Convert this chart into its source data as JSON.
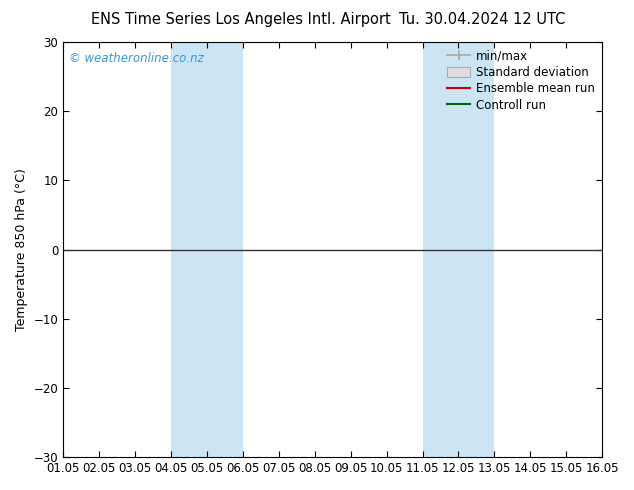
{
  "title_left": "ENS Time Series Los Angeles Intl. Airport",
  "title_right": "Tu. 30.04.2024 12 UTC",
  "ylabel": "Temperature 850 hPa (°C)",
  "ylim": [
    -30,
    30
  ],
  "yticks": [
    -30,
    -20,
    -10,
    0,
    10,
    20,
    30
  ],
  "xlim": [
    0,
    15
  ],
  "xtick_labels": [
    "01.05",
    "02.05",
    "03.05",
    "04.05",
    "05.05",
    "06.05",
    "07.05",
    "08.05",
    "09.05",
    "10.05",
    "11.05",
    "12.05",
    "13.05",
    "14.05",
    "15.05",
    "16.05"
  ],
  "xtick_positions": [
    0,
    1,
    2,
    3,
    4,
    5,
    6,
    7,
    8,
    9,
    10,
    11,
    12,
    13,
    14,
    15
  ],
  "shaded_bands": [
    {
      "xmin": 3,
      "xmax": 5
    },
    {
      "xmin": 10,
      "xmax": 12
    }
  ],
  "shade_color": "#cce5f5",
  "watermark": "© weatheronline.co.nz",
  "watermark_color": "#3399dd",
  "background_color": "#ffffff",
  "plot_bg_color": "#ffffff",
  "legend": {
    "min_max_label": "min/max",
    "std_dev_label": "Standard deviation",
    "ensemble_label": "Ensemble mean run",
    "control_label": "Controll run",
    "min_max_color": "#aaaaaa",
    "std_dev_facecolor": "#dddddd",
    "std_dev_edgecolor": "#aaaaaa",
    "ensemble_color": "#cc0000",
    "control_color": "#006600"
  },
  "hline_y": 0,
  "hline_color": "#333333",
  "title_fontsize": 10.5,
  "ylabel_fontsize": 9,
  "tick_fontsize": 8.5,
  "watermark_fontsize": 8.5
}
